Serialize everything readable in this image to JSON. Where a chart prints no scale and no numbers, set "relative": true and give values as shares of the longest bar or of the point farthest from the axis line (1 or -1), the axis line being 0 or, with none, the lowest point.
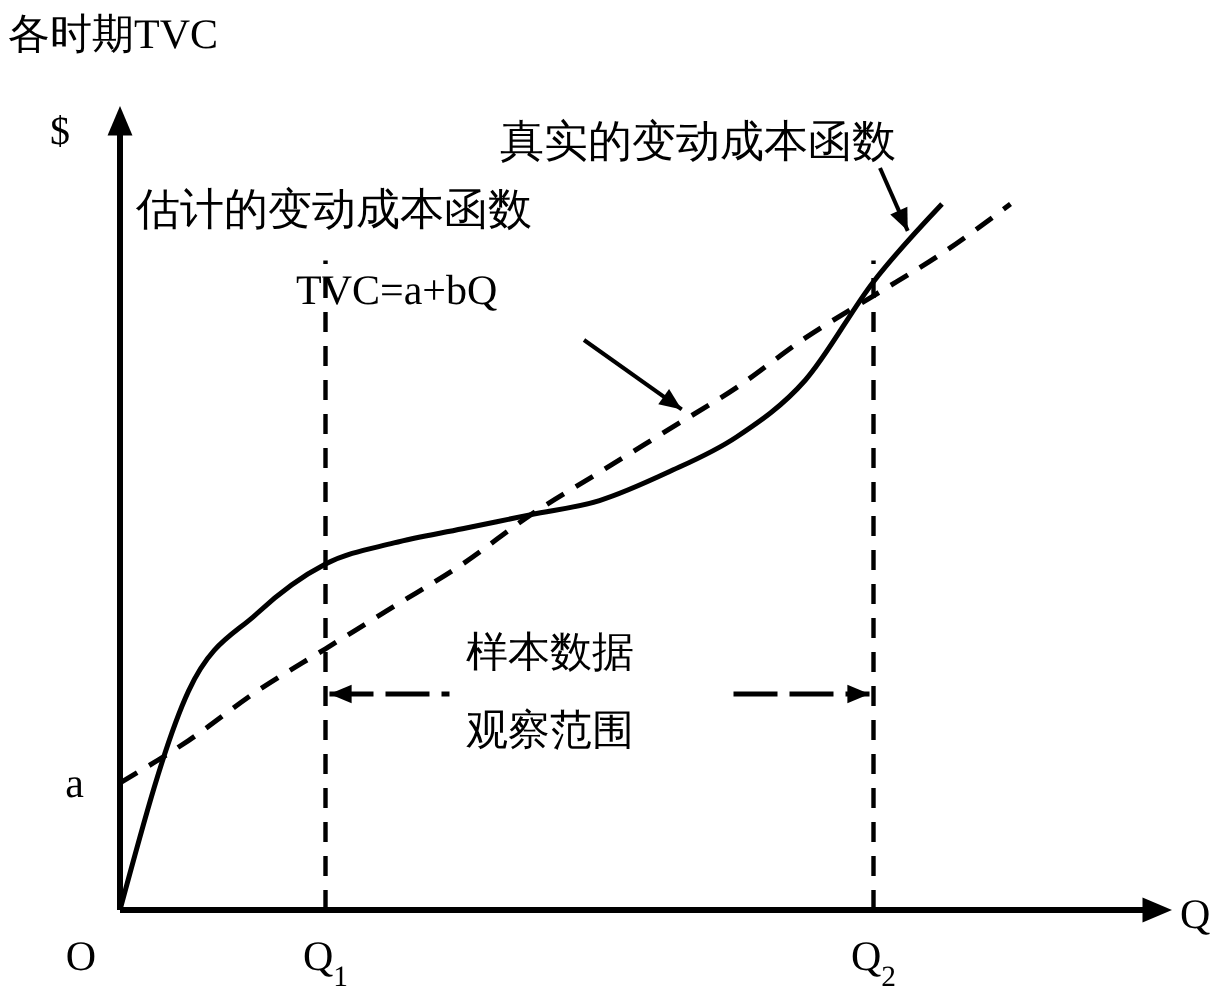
{
  "chart_data": {
    "type": "line",
    "relative": true,
    "title": "各时期TVC",
    "ylabel": "$",
    "xlabel": "Q",
    "categories": [
      null,
      null,
      null,
      "Q$_{1}$",
      null,
      null,
      null,
      null,
      null,
      null,
      null,
      "Q$_{2}$",
      null,
      null
    ],
    "series": [
      {
        "name": "真实的变动成本函数",
        "color": "#000000",
        "line_style": "solid",
        "values": [
          0,
          0.31,
          0.42,
          0.49,
          0.52,
          0.54,
          0.56,
          0.58,
          0.62,
          0.67,
          0.75,
          0.89,
          1.0,
          null
        ]
      },
      {
        "name": "估计的变动成本函数",
        "color": "#000000",
        "line_style": "dashed",
        "values": [
          0.18,
          0.24,
          0.31,
          0.37,
          0.43,
          0.49,
          0.56,
          0.62,
          0.68,
          0.74,
          0.81,
          0.87,
          0.93,
          1.0
        ]
      }
    ],
    "ref_lines": [
      {
        "axis": "x",
        "value": "Q$_{1}$",
        "line_style": "dashed",
        "color": "#000000"
      },
      {
        "axis": "x",
        "value": "Q$_{2}$",
        "line_style": "dashed",
        "color": "#000000"
      }
    ],
    "annotations": [
      "TVC=a+bQ",
      "样本数据",
      "观察范围",
      "a",
      "O"
    ]
  }
}
